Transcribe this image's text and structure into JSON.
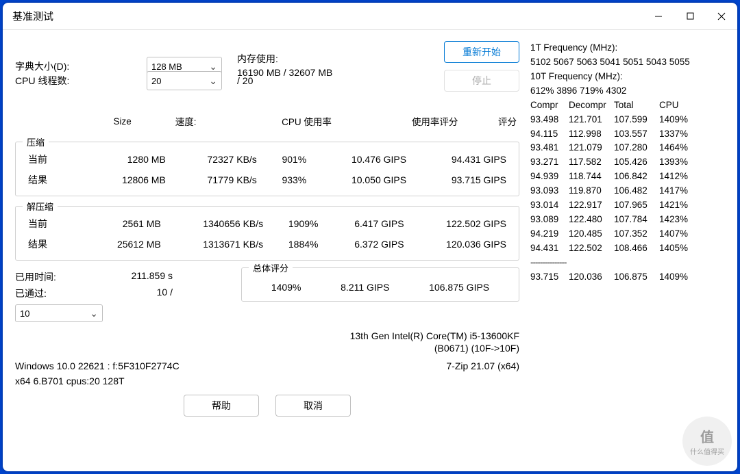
{
  "window": {
    "title": "基准测试"
  },
  "labels": {
    "dict_size": "字典大小(D):",
    "threads": "CPU 线程数:",
    "mem_usage": "内存使用:",
    "threads_total_prefix": "/ ",
    "elapsed": "已用时间:",
    "passed": "已通过:",
    "overall_title": "总体评分",
    "compress_group": "压缩",
    "decompress_group": "解压缩",
    "help": "帮助",
    "cancel": "取消",
    "restart": "重新开始",
    "stop": "停止"
  },
  "settings": {
    "dict_size_value": "128 MB",
    "threads_value": "20",
    "threads_total": "20",
    "mem_used": "16190 MB",
    "mem_total": "32607 MB",
    "passes_select": "10"
  },
  "columns": {
    "size": "Size",
    "speed": "速度:",
    "cpu": "CPU 使用率",
    "rating_u": "使用率评分",
    "rating": "评分"
  },
  "rows": {
    "current": "当前",
    "result": "结果"
  },
  "compress": {
    "current": {
      "size": "1280 MB",
      "speed": "72327 KB/s",
      "cpu": "901%",
      "rating_u": "10.476 GIPS",
      "rating": "94.431 GIPS"
    },
    "result": {
      "size": "12806 MB",
      "speed": "71779 KB/s",
      "cpu": "933%",
      "rating_u": "10.050 GIPS",
      "rating": "93.715 GIPS"
    }
  },
  "decompress": {
    "current": {
      "size": "2561 MB",
      "speed": "1340656 KB/s",
      "cpu": "1909%",
      "rating_u": "6.417 GIPS",
      "rating": "122.502 GIPS"
    },
    "result": {
      "size": "25612 MB",
      "speed": "1313671 KB/s",
      "cpu": "1884%",
      "rating_u": "6.372 GIPS",
      "rating": "120.036 GIPS"
    }
  },
  "elapsed": "211.859 s",
  "passed": "10 /",
  "overall": {
    "cpu": "1409%",
    "rating_u": "8.211 GIPS",
    "rating": "106.875 GIPS"
  },
  "sysinfo": {
    "cpu_line1": "13th Gen Intel(R) Core(TM) i5-13600KF",
    "cpu_line2": "(B0671) (10F->10F)",
    "os": "Windows 10.0 22621 :  f:5F310F2774C",
    "app": "7-Zip 21.07 (x64)",
    "arch": "x64 6.B701 cpus:20 128T"
  },
  "freq": {
    "t1_label": "1T Frequency (MHz):",
    "t1_values": " 5102 5067 5063 5041 5051 5043 5055",
    "t10_label": "10T Frequency (MHz):",
    "t10_values": " 612% 3896 719% 4302"
  },
  "stats_header": {
    "c1": "Compr",
    "c2": "Decompr",
    "c3": "Total",
    "c4": "CPU"
  },
  "stats_rows": [
    {
      "c1": "93.498",
      "c2": "121.701",
      "c3": "107.599",
      "c4": "1409%"
    },
    {
      "c1": "94.115",
      "c2": "112.998",
      "c3": "103.557",
      "c4": "1337%"
    },
    {
      "c1": "93.481",
      "c2": "121.079",
      "c3": "107.280",
      "c4": "1464%"
    },
    {
      "c1": "93.271",
      "c2": "117.582",
      "c3": "105.426",
      "c4": "1393%"
    },
    {
      "c1": "94.939",
      "c2": "118.744",
      "c3": "106.842",
      "c4": "1412%"
    },
    {
      "c1": "93.093",
      "c2": "119.870",
      "c3": "106.482",
      "c4": "1417%"
    },
    {
      "c1": "93.014",
      "c2": "122.917",
      "c3": "107.965",
      "c4": "1421%"
    },
    {
      "c1": "93.089",
      "c2": "122.480",
      "c3": "107.784",
      "c4": "1423%"
    },
    {
      "c1": "94.219",
      "c2": "120.485",
      "c3": "107.352",
      "c4": "1407%"
    },
    {
      "c1": "94.431",
      "c2": "122.502",
      "c3": "108.466",
      "c4": "1405%"
    }
  ],
  "stats_sep": "---------------",
  "stats_total": {
    "c1": "93.715",
    "c2": "120.036",
    "c3": "106.875",
    "c4": "1409%"
  },
  "watermark": {
    "big": "值",
    "small": "什么值得买"
  },
  "colors": {
    "accent": "#0078d4",
    "border": "#d0d0d0",
    "bg": "#ffffff"
  }
}
